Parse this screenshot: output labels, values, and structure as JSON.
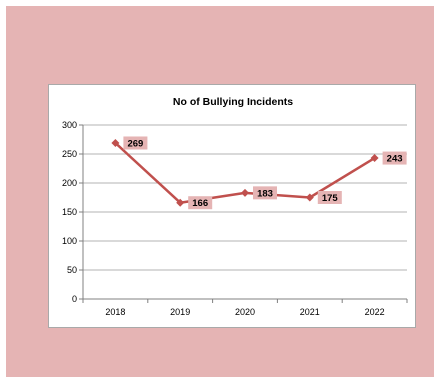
{
  "chart_data": {
    "type": "line",
    "title": "No of Bullying Incidents",
    "xlabel": "",
    "ylabel": "",
    "categories": [
      "2018",
      "2019",
      "2020",
      "2021",
      "2022"
    ],
    "series": [
      {
        "values": [
          269,
          166,
          183,
          175,
          243
        ]
      }
    ],
    "ylim": [
      0,
      300
    ],
    "yticks": [
      "0",
      "50",
      "100",
      "150",
      "200",
      "250",
      "300"
    ],
    "data_labels": [
      "269",
      "166",
      "183",
      "175",
      "243"
    ],
    "grid": true,
    "legend": "none",
    "colors": {
      "line": "#c0504d",
      "label_background": "#e5b4b4",
      "slide_background": "#e5b4b4",
      "gridline": "#b3b3b3"
    }
  }
}
